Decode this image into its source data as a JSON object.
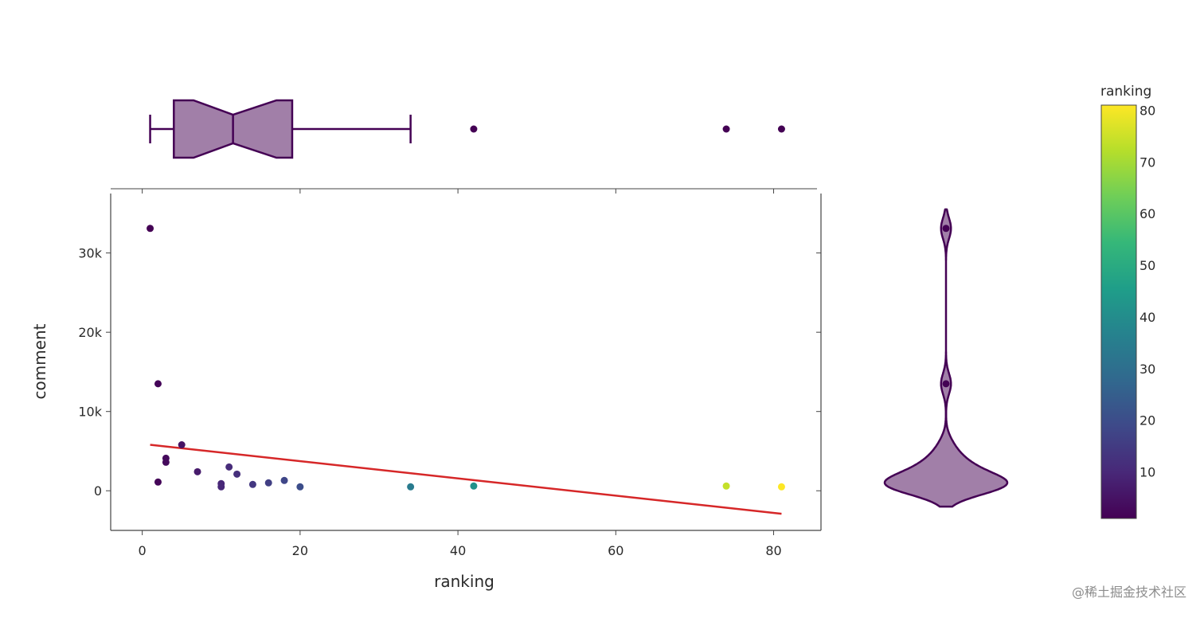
{
  "chart_data": {
    "type": "scatter",
    "xlabel": "ranking",
    "ylabel": "comment",
    "xlim": [
      -4,
      86
    ],
    "ylim": [
      -5000,
      37500
    ],
    "x_ticks": [
      0,
      20,
      40,
      60,
      80
    ],
    "x_tick_labels": [
      "0",
      "20",
      "40",
      "60",
      "80"
    ],
    "y_ticks": [
      0,
      10000,
      20000,
      30000
    ],
    "y_tick_labels": [
      "0",
      "10k",
      "20k",
      "30k"
    ],
    "points": [
      {
        "x": 1,
        "y": 33100
      },
      {
        "x": 2,
        "y": 13500
      },
      {
        "x": 2,
        "y": 1100
      },
      {
        "x": 3,
        "y": 4100
      },
      {
        "x": 3,
        "y": 3600
      },
      {
        "x": 5,
        "y": 5800
      },
      {
        "x": 7,
        "y": 2400
      },
      {
        "x": 10,
        "y": 900
      },
      {
        "x": 10,
        "y": 500
      },
      {
        "x": 11,
        "y": 3000
      },
      {
        "x": 12,
        "y": 2100
      },
      {
        "x": 14,
        "y": 800
      },
      {
        "x": 16,
        "y": 1000
      },
      {
        "x": 18,
        "y": 1300
      },
      {
        "x": 20,
        "y": 500
      },
      {
        "x": 34,
        "y": 500
      },
      {
        "x": 42,
        "y": 600
      },
      {
        "x": 74,
        "y": 600
      },
      {
        "x": 81,
        "y": 500
      }
    ],
    "trendline": {
      "x": [
        1,
        81
      ],
      "y": [
        5800,
        -2900
      ],
      "color": "#d62728"
    },
    "marginal_x": {
      "type": "box",
      "notched": true,
      "min": 1,
      "q1": 4,
      "median": 11.5,
      "q3": 19,
      "upper_fence": 34,
      "notch_low": 6.5,
      "notch_high": 17,
      "outliers": [
        42,
        74,
        81
      ]
    },
    "marginal_y": {
      "type": "violin",
      "range": [
        -2000,
        35500
      ],
      "points": [
        33100,
        13500
      ]
    },
    "colorbar": {
      "title": "ranking",
      "range": [
        1,
        81
      ],
      "ticks": [
        10,
        20,
        30,
        40,
        50,
        60,
        70,
        80
      ],
      "tick_labels": [
        "10",
        "20",
        "30",
        "40",
        "50",
        "60",
        "70",
        "80"
      ],
      "colorscale": [
        "#440154",
        "#482878",
        "#3e4989",
        "#31688e",
        "#26828e",
        "#1f9e89",
        "#35b779",
        "#6ece58",
        "#b5de2b",
        "#fde725"
      ]
    },
    "marginal_color": "#440154",
    "marginal_fill": "#a17fa8"
  },
  "watermark": "@稀土掘金技术社区"
}
